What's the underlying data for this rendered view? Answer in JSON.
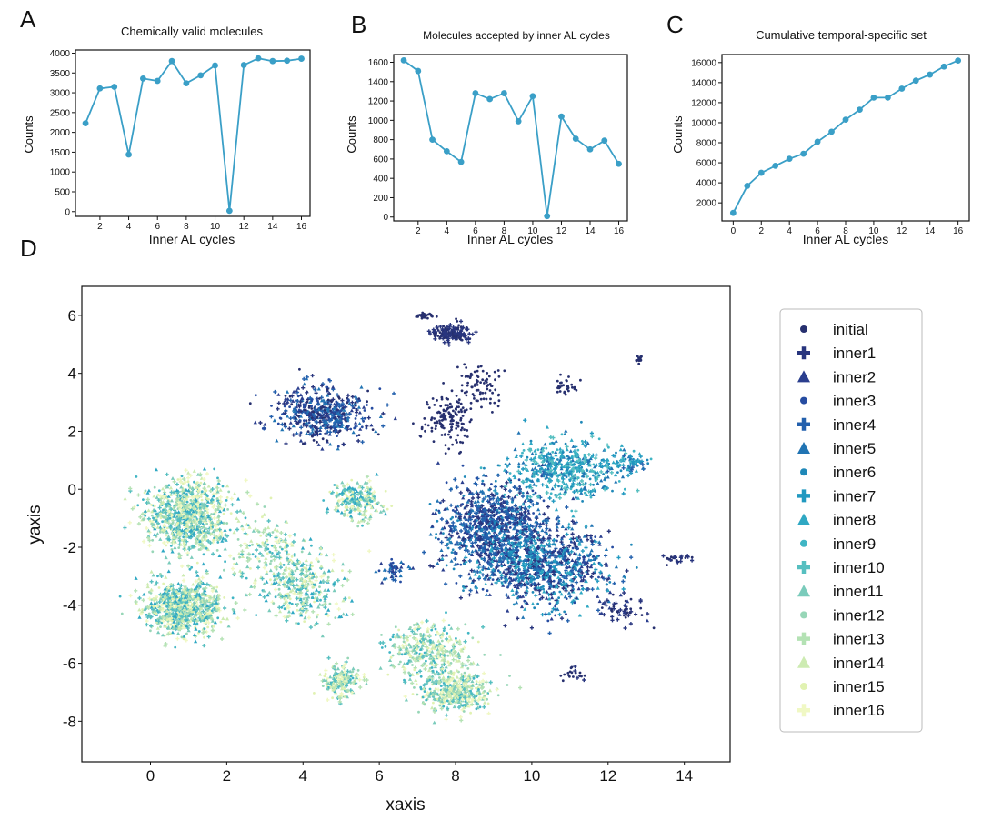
{
  "chart_data": [
    {
      "panel_label": "A",
      "type": "line",
      "title": "Chemically valid molecules",
      "xlabel": "Inner AL cycles",
      "ylabel": "Counts",
      "x": [
        1,
        2,
        3,
        4,
        5,
        6,
        7,
        8,
        9,
        10,
        11,
        12,
        13,
        14,
        15,
        16
      ],
      "values": [
        2230,
        3110,
        3150,
        1440,
        3360,
        3300,
        3800,
        3240,
        3440,
        3690,
        20,
        3700,
        3870,
        3800,
        3810,
        3860
      ],
      "xlim": [
        0.3,
        16.6
      ],
      "ylim": [
        -120,
        4080
      ],
      "xticks": [
        2,
        4,
        6,
        8,
        10,
        12,
        14,
        16
      ],
      "yticks": [
        0,
        500,
        1000,
        1500,
        2000,
        2500,
        3000,
        3500,
        4000
      ],
      "color": "#3a9fc7"
    },
    {
      "panel_label": "B",
      "type": "line",
      "title": "Molecules accepted by inner AL cycles",
      "xlabel": "Inner AL cycles",
      "ylabel": "Counts",
      "x": [
        1,
        2,
        3,
        4,
        5,
        6,
        7,
        8,
        9,
        10,
        11,
        12,
        13,
        14,
        15,
        16
      ],
      "values": [
        1620,
        1510,
        800,
        680,
        570,
        1280,
        1220,
        1280,
        990,
        1250,
        10,
        1040,
        810,
        700,
        790,
        550
      ],
      "xlim": [
        0.3,
        16.6
      ],
      "ylim": [
        -40,
        1680
      ],
      "xticks": [
        2,
        4,
        6,
        8,
        10,
        12,
        14,
        16
      ],
      "yticks": [
        0,
        200,
        400,
        600,
        800,
        1000,
        1200,
        1400,
        1600
      ],
      "color": "#3a9fc7"
    },
    {
      "panel_label": "C",
      "type": "line",
      "title": "Cumulative temporal-specific set",
      "xlabel": "Inner AL cycles",
      "ylabel": "Counts",
      "x": [
        0,
        1,
        2,
        3,
        4,
        5,
        6,
        7,
        8,
        9,
        10,
        11,
        12,
        13,
        14,
        15,
        16
      ],
      "values": [
        1000,
        3700,
        5000,
        5700,
        6400,
        6900,
        8100,
        9100,
        10300,
        11300,
        12500,
        12500,
        13400,
        14200,
        14800,
        15600,
        16200
      ],
      "xlim": [
        -0.8,
        16.8
      ],
      "ylim": [
        200,
        16800
      ],
      "xticks": [
        0,
        2,
        4,
        6,
        8,
        10,
        12,
        14,
        16
      ],
      "yticks": [
        2000,
        4000,
        6000,
        8000,
        10000,
        12000,
        14000,
        16000
      ],
      "color": "#3a9fc7"
    },
    {
      "panel_label": "D",
      "type": "scatter",
      "xlabel": "xaxis",
      "ylabel": "yaxis",
      "xlim": [
        -1.8,
        15.2
      ],
      "ylim": [
        -9.4,
        7.0
      ],
      "xticks": [
        0,
        2,
        4,
        6,
        8,
        10,
        12,
        14
      ],
      "yticks": [
        -8,
        -6,
        -4,
        -2,
        0,
        2,
        4,
        6
      ],
      "legend_position": "right",
      "series": [
        {
          "name": "initial",
          "marker": "circle",
          "color": "#27306f"
        },
        {
          "name": "inner1",
          "marker": "plus",
          "color": "#28357e"
        },
        {
          "name": "inner2",
          "marker": "triangle",
          "color": "#2a3e8e"
        },
        {
          "name": "inner3",
          "marker": "circle",
          "color": "#264ca1"
        },
        {
          "name": "inner4",
          "marker": "plus",
          "color": "#2360ad"
        },
        {
          "name": "inner5",
          "marker": "triangle",
          "color": "#2174b3"
        },
        {
          "name": "inner6",
          "marker": "circle",
          "color": "#1f88b8"
        },
        {
          "name": "inner7",
          "marker": "plus",
          "color": "#2199c0"
        },
        {
          "name": "inner8",
          "marker": "triangle",
          "color": "#2fa8c3"
        },
        {
          "name": "inner9",
          "marker": "circle",
          "color": "#40b5c4"
        },
        {
          "name": "inner10",
          "marker": "plus",
          "color": "#56bfc0"
        },
        {
          "name": "inner11",
          "marker": "triangle",
          "color": "#7acbbb"
        },
        {
          "name": "inner12",
          "marker": "circle",
          "color": "#97d6b7"
        },
        {
          "name": "inner13",
          "marker": "plus",
          "color": "#b4e2b4"
        },
        {
          "name": "inner14",
          "marker": "triangle",
          "color": "#cdebb2"
        },
        {
          "name": "inner15",
          "marker": "circle",
          "color": "#e1f2b2"
        },
        {
          "name": "inner16",
          "marker": "plus",
          "color": "#f0f8c4"
        }
      ]
    }
  ]
}
